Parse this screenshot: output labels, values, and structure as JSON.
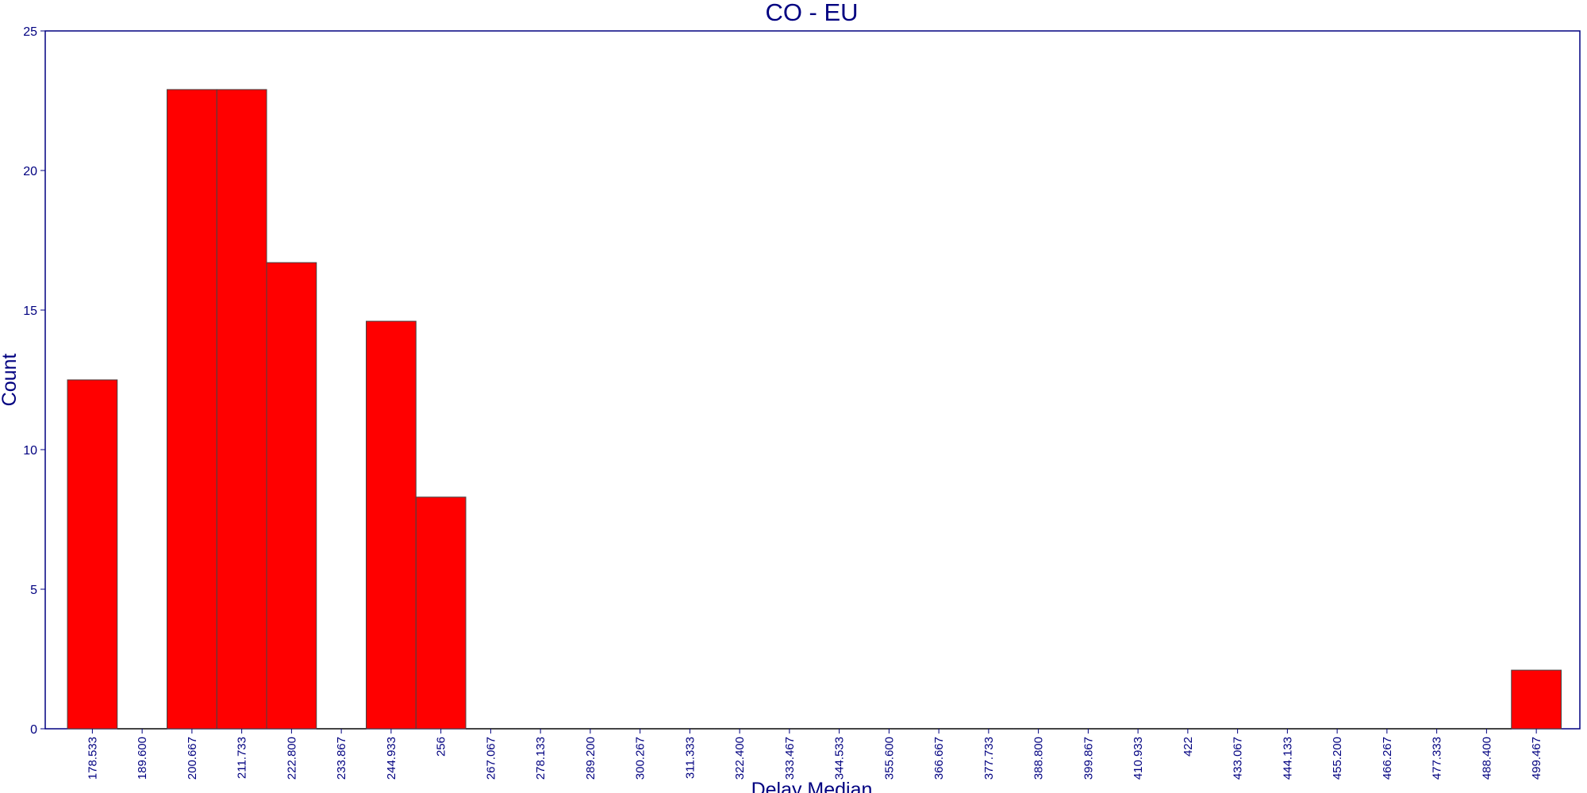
{
  "chart_data": {
    "type": "bar",
    "title": "CO - EU",
    "xlabel": "Delay Median",
    "ylabel": "Count",
    "ylim": [
      0,
      25
    ],
    "yticks": [
      "0",
      "5",
      "10",
      "15",
      "20",
      "25"
    ],
    "categories": [
      "178.533",
      "189.600",
      "200.667",
      "211.733",
      "222.800",
      "233.867",
      "244.933",
      "256",
      "267.067",
      "278.133",
      "289.200",
      "300.267",
      "311.333",
      "322.400",
      "333.467",
      "344.533",
      "355.600",
      "366.667",
      "377.733",
      "388.800",
      "399.867",
      "410.933",
      "422",
      "433.067",
      "444.133",
      "455.200",
      "466.267",
      "477.333",
      "488.400",
      "499.467"
    ],
    "values": [
      12.5,
      0,
      22.9,
      22.9,
      16.7,
      0,
      14.6,
      8.3,
      0,
      0,
      0,
      0,
      0,
      0,
      0,
      0,
      0,
      0,
      0,
      0,
      0,
      0,
      0,
      0,
      0,
      0,
      0,
      0,
      0,
      2.1
    ],
    "grid": false,
    "colors": {
      "bar": "#ff0000",
      "bar_edge": "#444444",
      "axis": "#000080",
      "text": "#000080"
    }
  }
}
